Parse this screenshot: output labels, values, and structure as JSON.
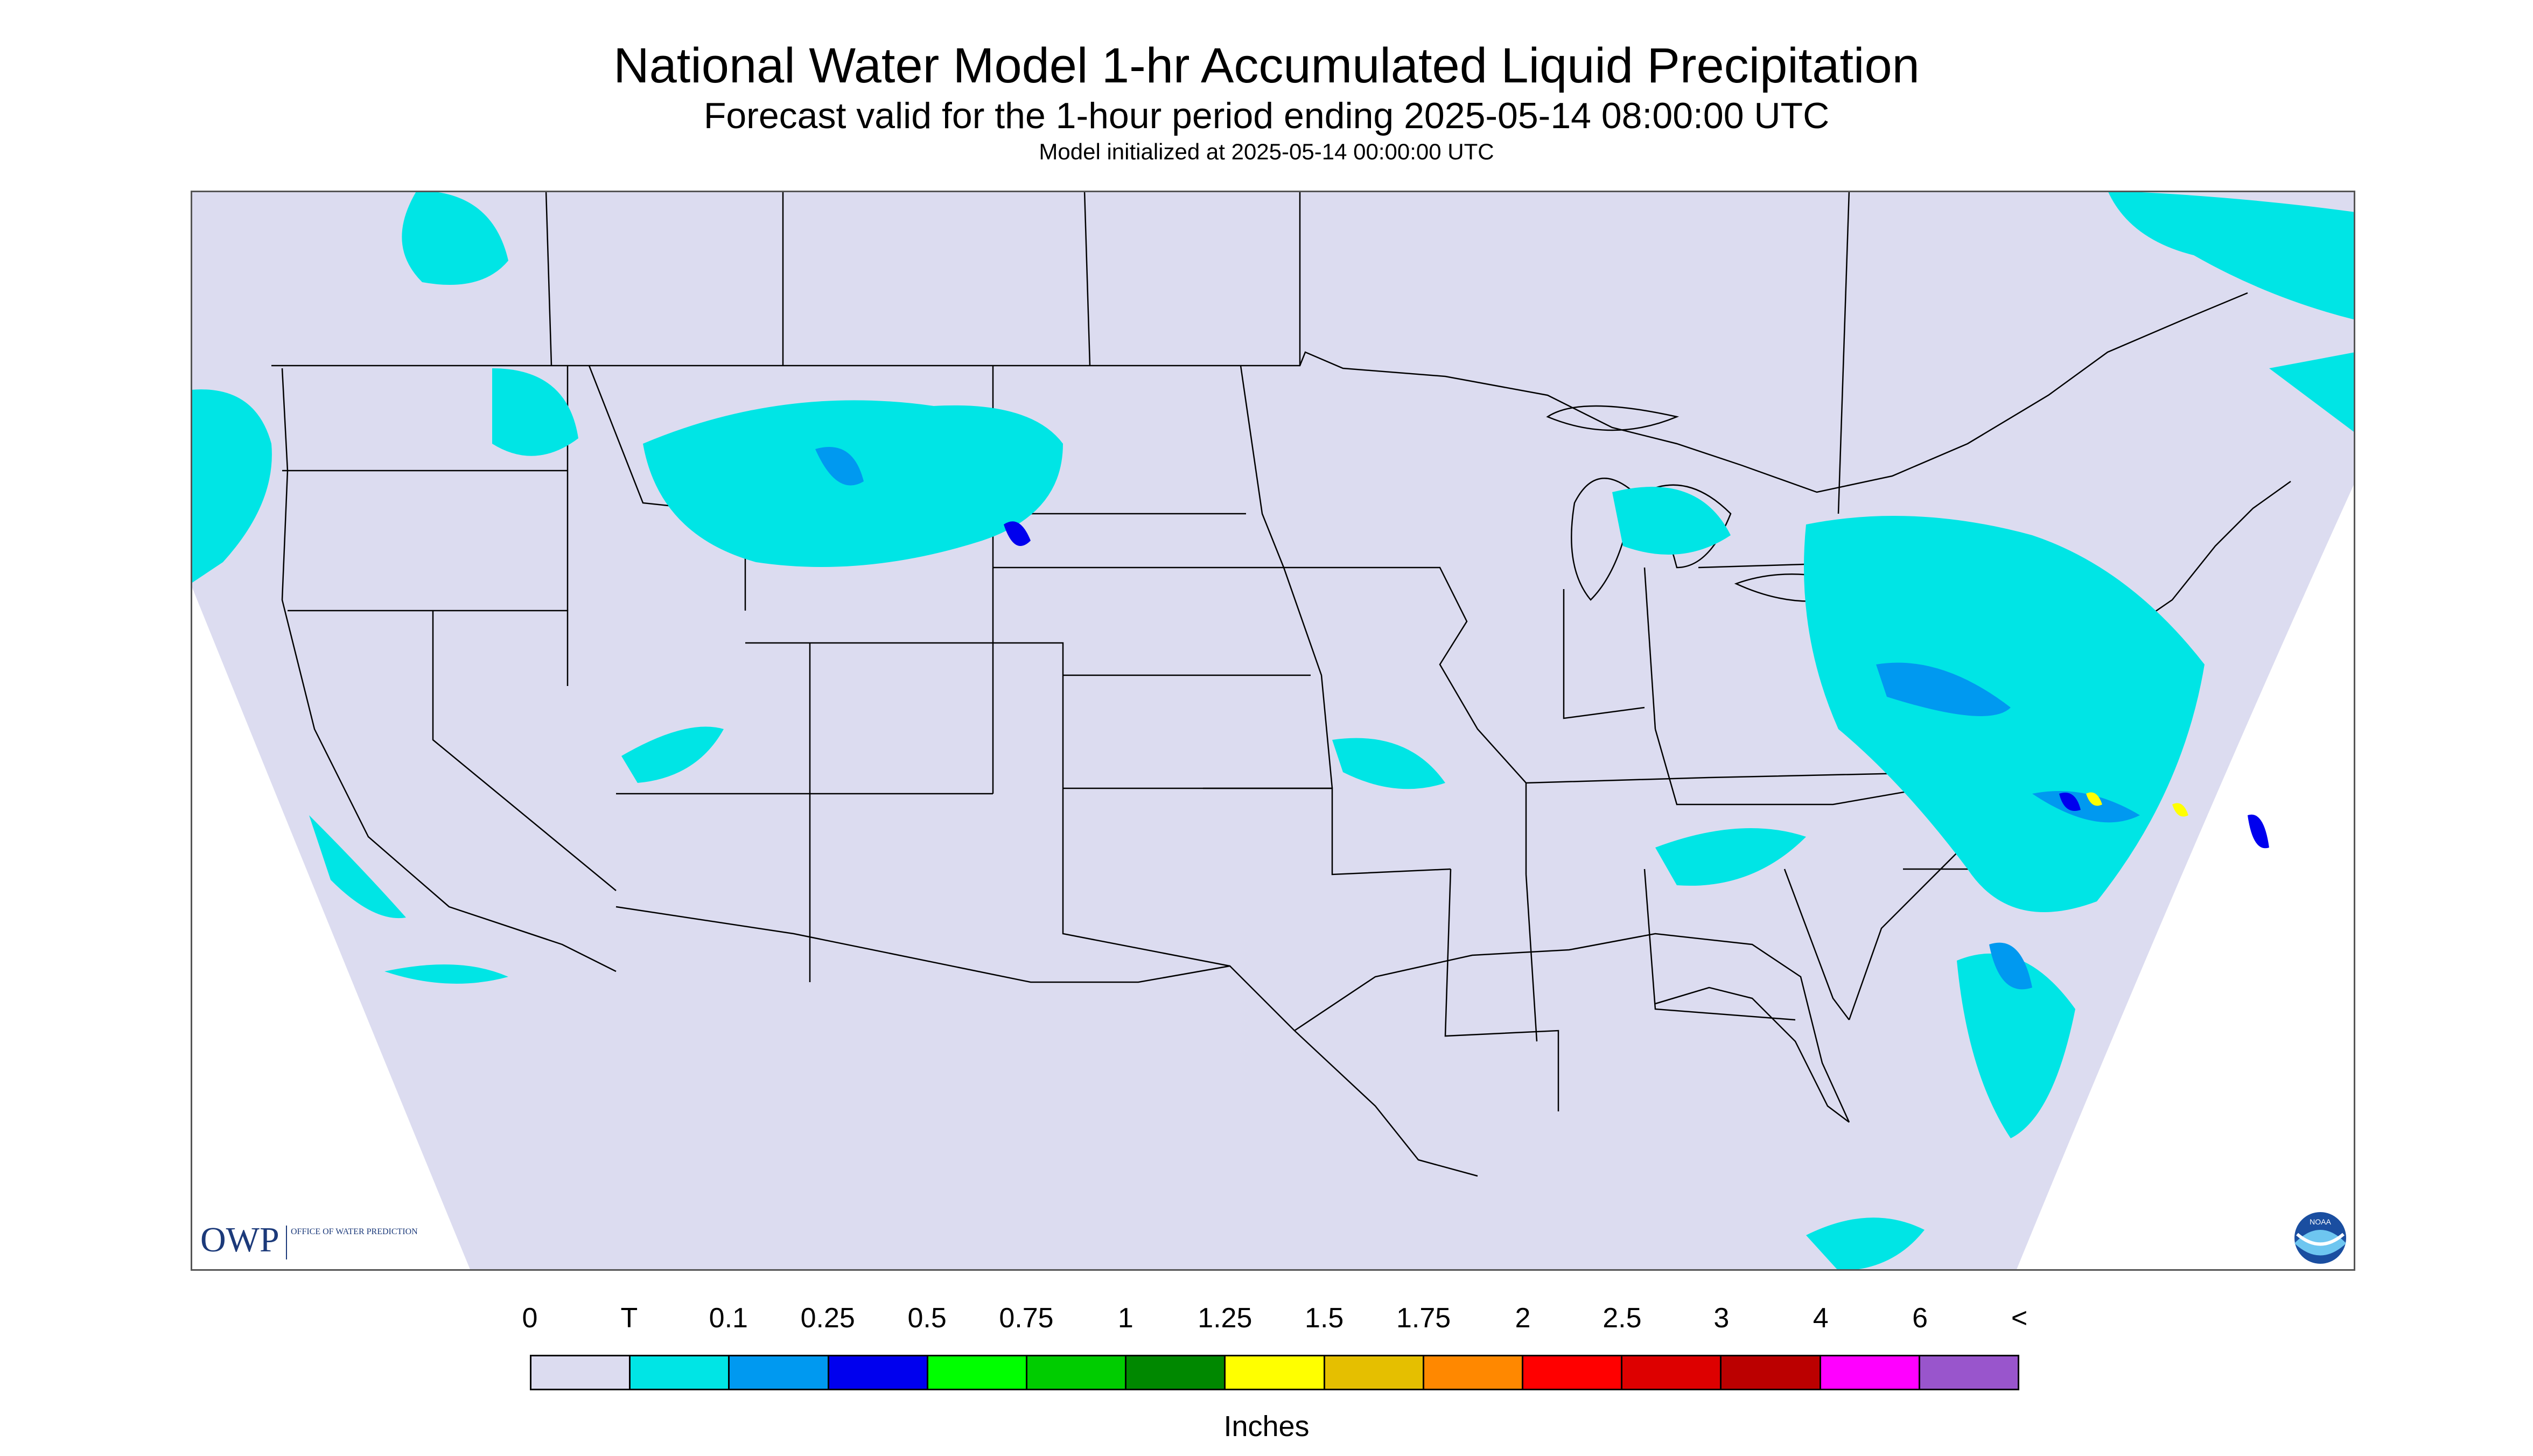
{
  "title": "National Water Model 1-hr Accumulated Liquid Precipitation",
  "subtitle": "Forecast valid for the 1-hour period ending 2025-05-14 08:00:00 UTC",
  "init_line": "Model initialized at 2025-05-14 00:00:00 UTC",
  "logos": {
    "owp_abbrev": "OWP",
    "owp_text": "OFFICE OF WATER PREDICTION",
    "noaa_text": "NOAA"
  },
  "legend": {
    "tick_labels": [
      "0",
      "T",
      "0.1",
      "0.25",
      "0.5",
      "0.75",
      "1",
      "1.25",
      "1.5",
      "1.75",
      "2",
      "2.5",
      "3",
      "4",
      "6",
      "<"
    ],
    "colors": [
      "#dcdcf0",
      "#00e5e5",
      "#0099f0",
      "#0000ee",
      "#00ff00",
      "#00cc00",
      "#008800",
      "#ffff00",
      "#e5bf00",
      "#ff8800",
      "#ff0000",
      "#dd0000",
      "#bb0000",
      "#ff00ff",
      "#9955cc"
    ],
    "units": "Inches"
  },
  "map": {
    "background_color": "#dcdcf0",
    "precip_trace_color": "#00e5e5",
    "precip_light_color": "#0099f0",
    "precip_moderate_color": "#0000ee",
    "precip_heavy_color": "#ffff00",
    "boundary_color": "#000000"
  }
}
